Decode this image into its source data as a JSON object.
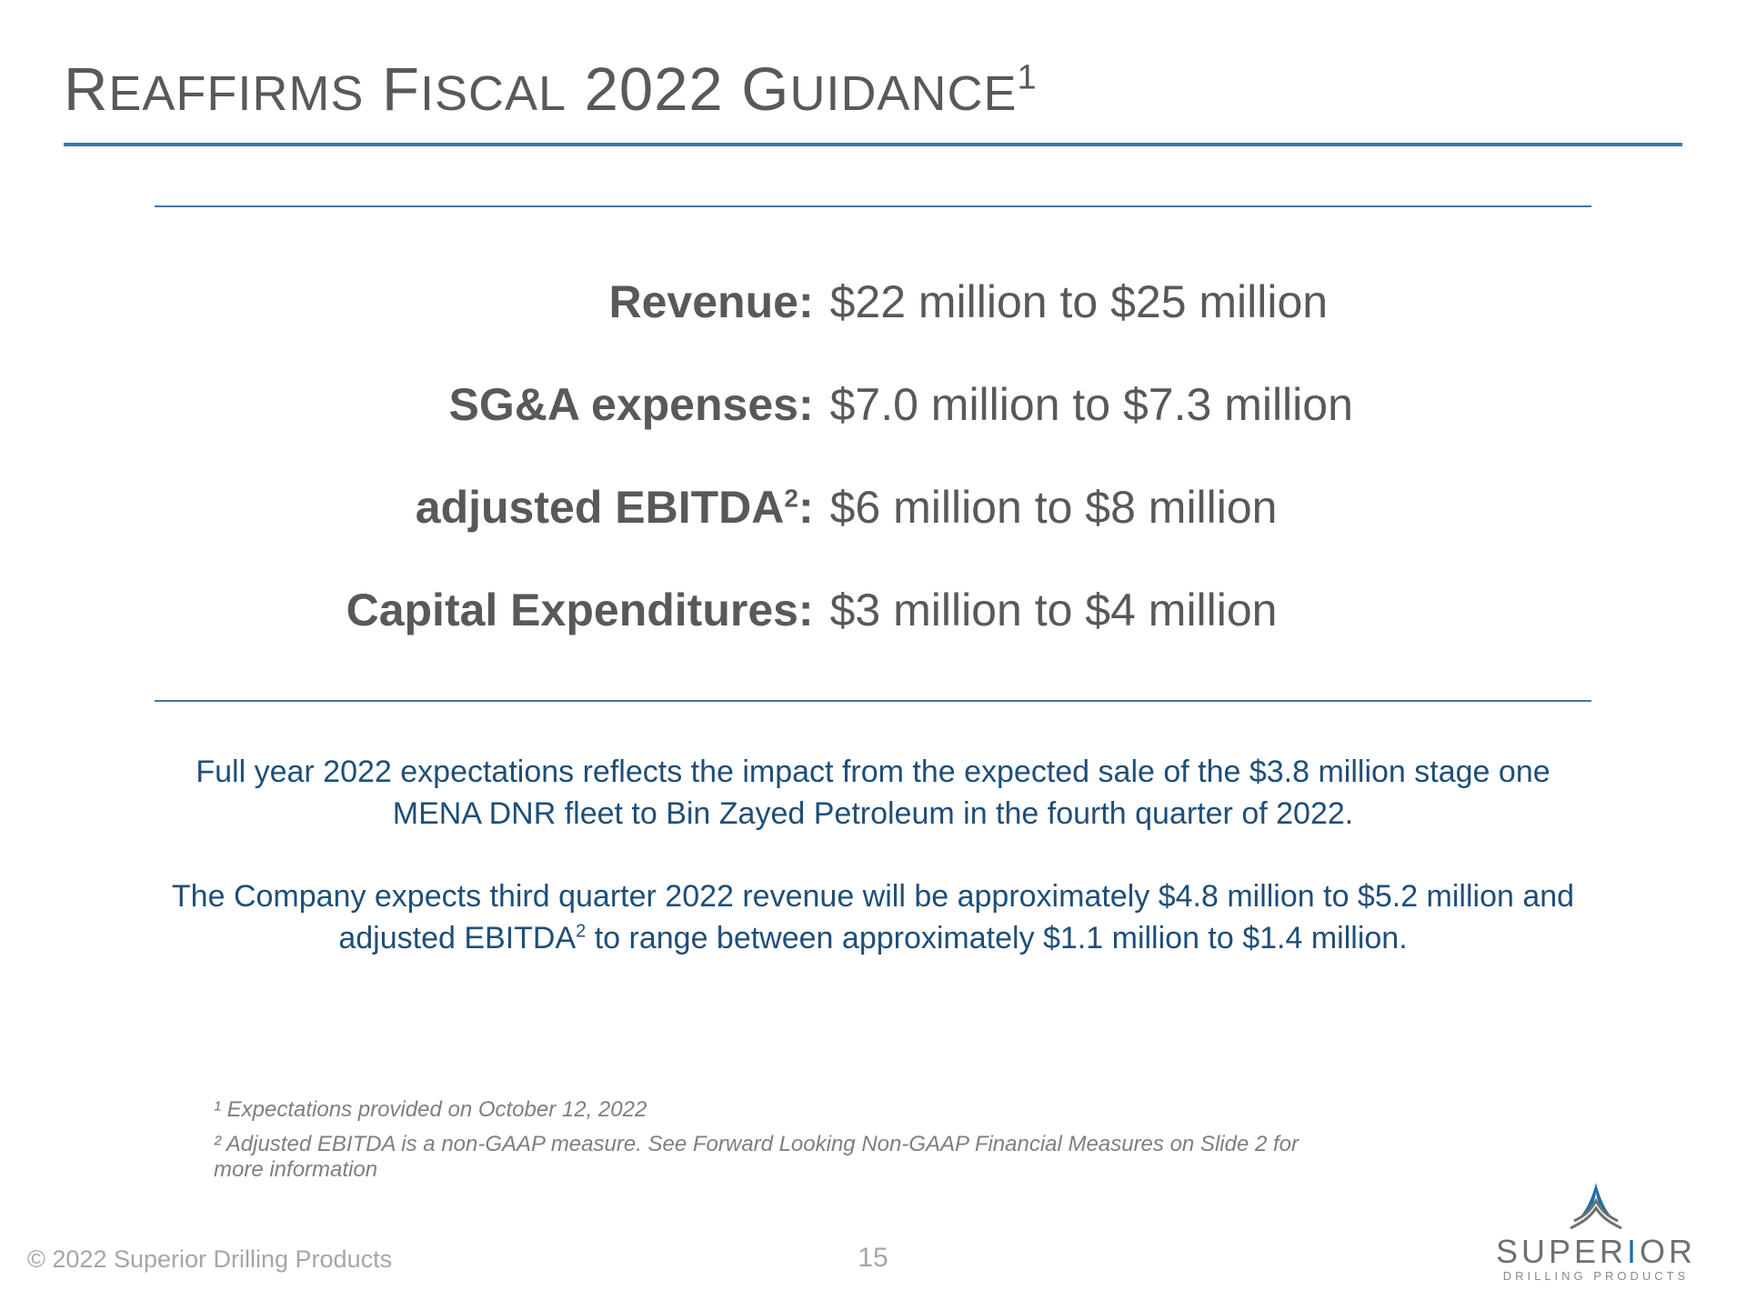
{
  "title_html": "R<span style='font-size:54px'>EAFFIRMS</span> F<span style='font-size:54px'>ISCAL</span> 2022 G<span style='font-size:54px'>UIDANCE</span><sup>1</sup>",
  "colors": {
    "rule": "#4473a5",
    "heading_text": "#595959",
    "body_text": "#595959",
    "note_text": "#1f4e79",
    "footnote_text": "#7f7f7f",
    "footer_text": "#a6a6a6",
    "logo_accent": "#1f6fa8",
    "logo_text": "#707070",
    "background": "#ffffff"
  },
  "guidance": [
    {
      "label": "Revenue:",
      "value": "$22 million to $25 million"
    },
    {
      "label": "SG&A expenses:",
      "value": "$7.0 million to $7.3 million"
    },
    {
      "label": "adjusted EBITDA²:",
      "value": "$6 million to $8 million"
    },
    {
      "label": "Capital Expenditures:",
      "value": "$3 million to $4 million"
    }
  ],
  "notes": [
    "Full year 2022 expectations reflects the impact from the expected sale of the $3.8 million stage one MENA DNR fleet to Bin Zayed Petroleum in the fourth quarter of 2022.",
    "The Company expects third quarter 2022 revenue will be approximately $4.8 million to $5.2 million and adjusted EBITDA² to range between approximately $1.1 million to $1.4 million."
  ],
  "footnotes": [
    "¹ Expectations provided on October 12, 2022",
    "² Adjusted EBITDA is a non-GAAP measure. See Forward Looking Non-GAAP Financial Measures on Slide 2 for more information"
  ],
  "footer": {
    "copyright": "© 2022 Superior Drilling Products",
    "page": "15"
  },
  "logo": {
    "main_pre": "SUPER",
    "main_accent": "I",
    "main_post": "OR",
    "sub": "DRILLING PRODUCTS"
  }
}
